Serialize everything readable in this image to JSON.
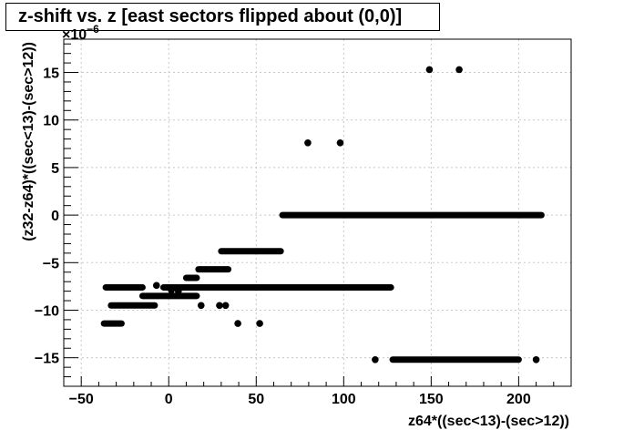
{
  "chart_data": {
    "type": "scatter",
    "title": "z-shift vs. z [east sectors flipped about (0,0)]",
    "xlabel": "z64*((sec<13)-(sec>12))",
    "ylabel": "(z32-z64)*((sec<13)-(sec>12))",
    "y_exponent_label": "×10",
    "y_exponent_power": "−6",
    "xlim": [
      -60,
      230
    ],
    "ylim": [
      -18,
      18.5
    ],
    "grid": true,
    "marker_color": "#000000",
    "x_ticks": [
      -50,
      0,
      50,
      100,
      150,
      200
    ],
    "x_tick_labels": [
      "−50",
      "0",
      "50",
      "100",
      "150",
      "200"
    ],
    "y_ticks": [
      -15,
      -10,
      -5,
      0,
      5,
      10,
      15
    ],
    "y_tick_labels": [
      "−15",
      "−10",
      "−5",
      "0",
      "5",
      "10",
      "15"
    ],
    "bands": [
      {
        "y": 0.0,
        "x": [
          65,
          213
        ]
      },
      {
        "y": -3.8,
        "x": [
          30,
          64
        ]
      },
      {
        "y": -5.7,
        "x": [
          17,
          34
        ]
      },
      {
        "y": -6.6,
        "x": [
          10,
          16
        ]
      },
      {
        "y": -7.6,
        "x": [
          -36,
          -15
        ]
      },
      {
        "y": -7.6,
        "x": [
          -3,
          127
        ]
      },
      {
        "y": -8.5,
        "x": [
          -15,
          16
        ]
      },
      {
        "y": -9.5,
        "x": [
          -33,
          -8
        ]
      },
      {
        "y": -11.4,
        "x": [
          -37,
          -27
        ]
      },
      {
        "y": -15.2,
        "x": [
          128,
          200
        ]
      }
    ],
    "points": [
      {
        "x": 79.5,
        "y": 7.6
      },
      {
        "x": 98,
        "y": 7.6
      },
      {
        "x": 149,
        "y": 15.3
      },
      {
        "x": 166,
        "y": 15.3
      },
      {
        "x": 118,
        "y": -15.2
      },
      {
        "x": 210,
        "y": -15.2
      },
      {
        "x": 39.5,
        "y": -11.4
      },
      {
        "x": 52,
        "y": -11.4
      },
      {
        "x": 18.5,
        "y": -9.5
      },
      {
        "x": 29,
        "y": -9.5
      },
      {
        "x": 32.5,
        "y": -9.5
      },
      {
        "x": -7,
        "y": -7.4
      },
      {
        "x": 1.5,
        "y": -7.9
      },
      {
        "x": 5.5,
        "y": -8.0
      }
    ]
  }
}
